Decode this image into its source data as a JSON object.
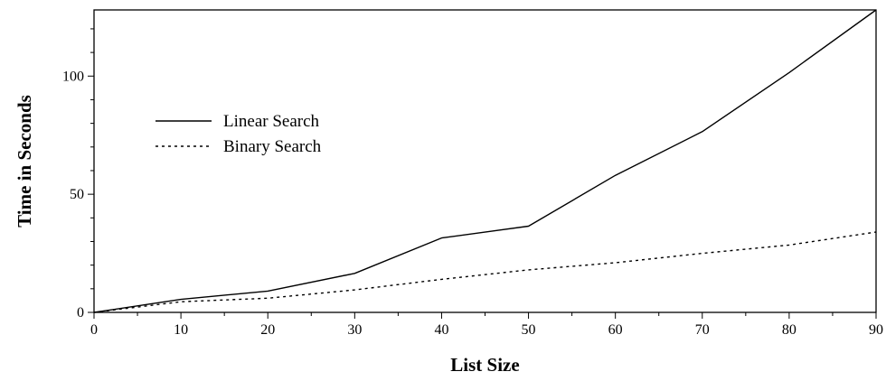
{
  "chart_data": {
    "type": "line",
    "title": "",
    "xlabel": "List Size",
    "ylabel": "Time in Seconds",
    "xlim": [
      0,
      90
    ],
    "ylim": [
      0,
      128
    ],
    "x_ticks": [
      0,
      10,
      20,
      30,
      40,
      50,
      60,
      70,
      80,
      90
    ],
    "y_ticks": [
      0,
      50,
      100
    ],
    "grid": false,
    "legend_position": "upper-left",
    "series": [
      {
        "name": "Linear Search",
        "style": "solid",
        "x": [
          0,
          10,
          20,
          30,
          40,
          50,
          60,
          70,
          80,
          90
        ],
        "y": [
          0,
          5.5,
          9,
          16.5,
          31.5,
          36.5,
          58,
          76.5,
          101.5,
          128
        ]
      },
      {
        "name": "Binary Search",
        "style": "dotted",
        "x": [
          0,
          10,
          20,
          30,
          40,
          50,
          60,
          70,
          80,
          90
        ],
        "y": [
          0,
          4.5,
          6,
          9.5,
          14,
          18,
          21,
          25,
          28.5,
          34
        ]
      }
    ]
  }
}
